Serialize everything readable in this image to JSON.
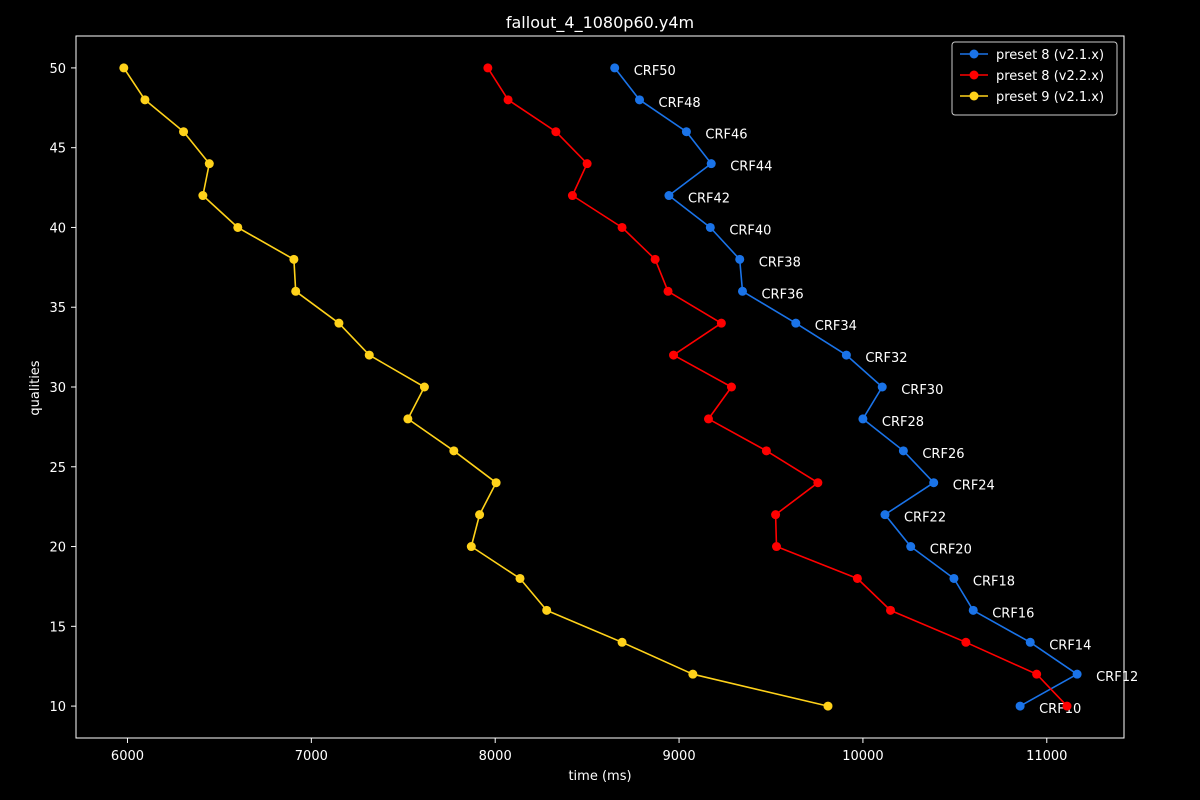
{
  "chart_data": {
    "type": "line",
    "title": "fallout_4_1080p60.y4m",
    "xlabel": "time (ms)",
    "ylabel": "qualities",
    "xlim": [
      5720,
      11420
    ],
    "ylim": [
      8,
      52
    ],
    "xticks": [
      6000,
      7000,
      8000,
      9000,
      10000,
      11000
    ],
    "yticks": [
      10,
      15,
      20,
      25,
      30,
      35,
      40,
      45,
      50
    ],
    "legend_position": "top-right",
    "series": [
      {
        "name": "preset 8 (v2.1.x)",
        "color": "#1a73e8",
        "points": [
          {
            "x": 8650,
            "y": 50,
            "label": "CRF50"
          },
          {
            "x": 8785,
            "y": 48,
            "label": "CRF48"
          },
          {
            "x": 9040,
            "y": 46,
            "label": "CRF46"
          },
          {
            "x": 9175,
            "y": 44,
            "label": "CRF44"
          },
          {
            "x": 8945,
            "y": 42,
            "label": "CRF42"
          },
          {
            "x": 9170,
            "y": 40,
            "label": "CRF40"
          },
          {
            "x": 9330,
            "y": 38,
            "label": "CRF38"
          },
          {
            "x": 9345,
            "y": 36,
            "label": "CRF36"
          },
          {
            "x": 9635,
            "y": 34,
            "label": "CRF34"
          },
          {
            "x": 9910,
            "y": 32,
            "label": "CRF32"
          },
          {
            "x": 10105,
            "y": 30,
            "label": "CRF30"
          },
          {
            "x": 10000,
            "y": 28,
            "label": "CRF28"
          },
          {
            "x": 10220,
            "y": 26,
            "label": "CRF26"
          },
          {
            "x": 10385,
            "y": 24,
            "label": "CRF24"
          },
          {
            "x": 10120,
            "y": 22,
            "label": "CRF22"
          },
          {
            "x": 10260,
            "y": 20,
            "label": "CRF20"
          },
          {
            "x": 10495,
            "y": 18,
            "label": "CRF18"
          },
          {
            "x": 10600,
            "y": 16,
            "label": "CRF16"
          },
          {
            "x": 10910,
            "y": 14,
            "label": "CRF14"
          },
          {
            "x": 11165,
            "y": 12,
            "label": "CRF12"
          },
          {
            "x": 10855,
            "y": 10,
            "label": "CRF10"
          }
        ]
      },
      {
        "name": "preset 8 (v2.2.x)",
        "color": "#ff0000",
        "points": [
          {
            "x": 7960,
            "y": 50
          },
          {
            "x": 8070,
            "y": 48
          },
          {
            "x": 8330,
            "y": 46
          },
          {
            "x": 8500,
            "y": 44
          },
          {
            "x": 8420,
            "y": 42
          },
          {
            "x": 8690,
            "y": 40
          },
          {
            "x": 8870,
            "y": 38
          },
          {
            "x": 8940,
            "y": 36
          },
          {
            "x": 9230,
            "y": 34
          },
          {
            "x": 8970,
            "y": 32
          },
          {
            "x": 9285,
            "y": 30
          },
          {
            "x": 9160,
            "y": 28
          },
          {
            "x": 9475,
            "y": 26
          },
          {
            "x": 9755,
            "y": 24
          },
          {
            "x": 9525,
            "y": 22
          },
          {
            "x": 9530,
            "y": 20
          },
          {
            "x": 9970,
            "y": 18
          },
          {
            "x": 10150,
            "y": 16
          },
          {
            "x": 10560,
            "y": 14
          },
          {
            "x": 10945,
            "y": 12
          },
          {
            "x": 11110,
            "y": 10
          }
        ]
      },
      {
        "name": "preset 9 (v2.1.x)",
        "color": "#ffd21a",
        "points": [
          {
            "x": 5980,
            "y": 50
          },
          {
            "x": 6095,
            "y": 48
          },
          {
            "x": 6305,
            "y": 46
          },
          {
            "x": 6445,
            "y": 44
          },
          {
            "x": 6410,
            "y": 42
          },
          {
            "x": 6600,
            "y": 40
          },
          {
            "x": 6905,
            "y": 38
          },
          {
            "x": 6915,
            "y": 36
          },
          {
            "x": 7150,
            "y": 34
          },
          {
            "x": 7315,
            "y": 32
          },
          {
            "x": 7615,
            "y": 30
          },
          {
            "x": 7525,
            "y": 28
          },
          {
            "x": 7775,
            "y": 26
          },
          {
            "x": 8005,
            "y": 24
          },
          {
            "x": 7915,
            "y": 22
          },
          {
            "x": 7870,
            "y": 20
          },
          {
            "x": 8135,
            "y": 18
          },
          {
            "x": 8280,
            "y": 16
          },
          {
            "x": 8690,
            "y": 14
          },
          {
            "x": 9075,
            "y": 12
          },
          {
            "x": 9810,
            "y": 10
          }
        ]
      }
    ]
  }
}
